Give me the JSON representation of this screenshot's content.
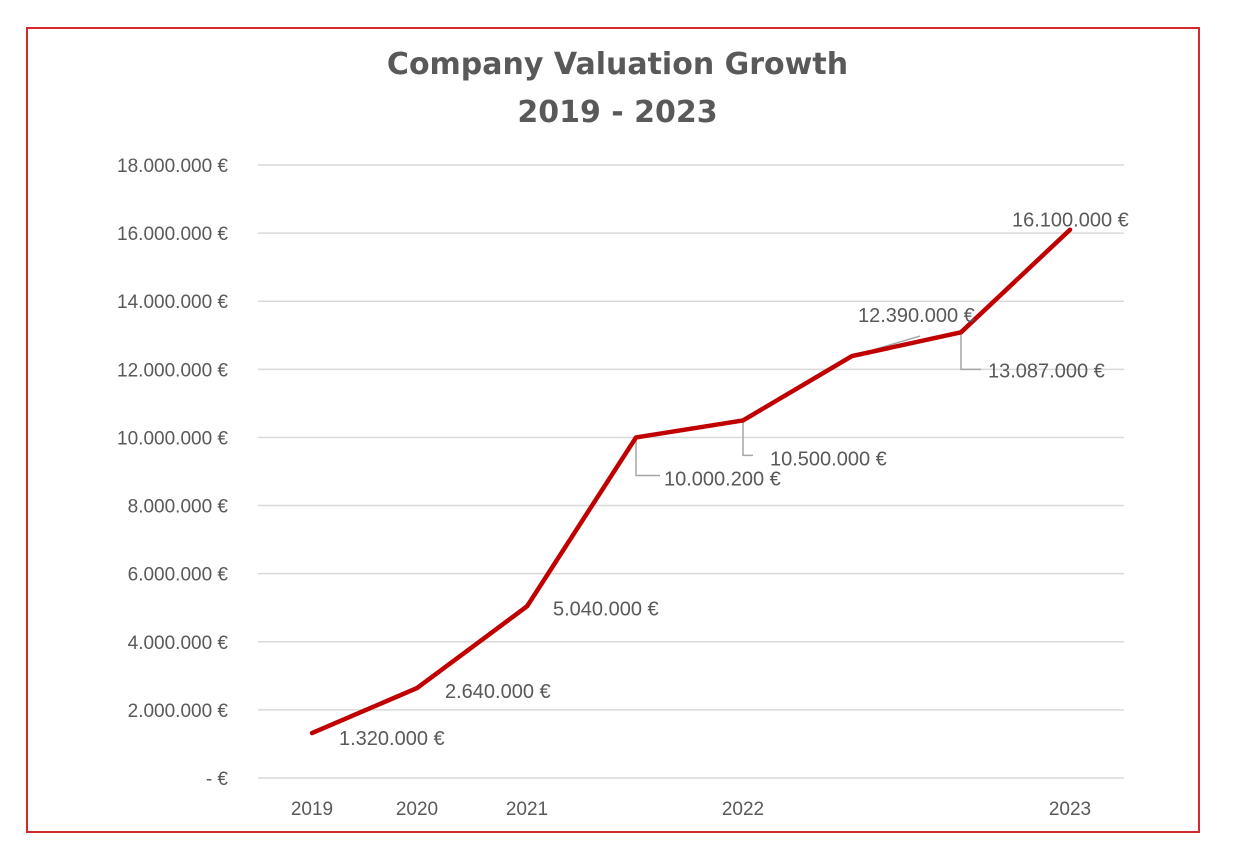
{
  "chart_data": {
    "type": "line",
    "title": "Company Valuation Growth",
    "subtitle": "2019 - 2023",
    "xlabel": "",
    "ylabel": "",
    "ylim": [
      0,
      18000000
    ],
    "grid": true,
    "legend": "none",
    "y_tick_labels": [
      "-  €",
      "2.000.000 €",
      "4.000.000 €",
      "6.000.000 €",
      "8.000.000 €",
      "10.000.000 €",
      "12.000.000 €",
      "14.000.000 €",
      "16.000.000 €",
      "18.000.000 €"
    ],
    "x_tick_labels": [
      "2019",
      "2020",
      "2021",
      "",
      "2022",
      "",
      "",
      "2023"
    ],
    "series": [
      {
        "color": "#c00000",
        "values": [
          1320000,
          2640000,
          5040000,
          10000200,
          10500000,
          12390000,
          13087000,
          16100000
        ],
        "labels": [
          "1.320.000 €",
          "2.640.000 €",
          "5.040.000 €",
          "10.000.200 €",
          "10.500.000 €",
          "12.390.000 €",
          "13.087.000 €",
          "16.100.000 €"
        ]
      }
    ]
  },
  "colors": {
    "line": "#c00000",
    "frame": "#d42a2f",
    "grid": "#d9d9d9",
    "text": "#595959"
  }
}
